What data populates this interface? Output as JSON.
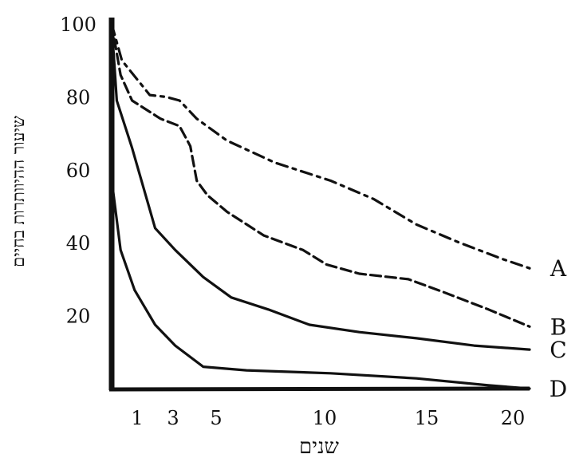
{
  "chart_data": {
    "type": "line",
    "title": "",
    "xlabel": "שנים",
    "ylabel": "שיעור ההיוותרות בחיים",
    "xlim": [
      0,
      20
    ],
    "ylim": [
      0,
      100
    ],
    "x_ticks": [
      1,
      3,
      5,
      10,
      15,
      20
    ],
    "y_ticks": [
      20,
      40,
      60,
      80,
      100
    ],
    "grid": false,
    "legend": "series labels at right end of lines",
    "series": [
      {
        "name": "A",
        "style": "dash-dot",
        "points": [
          [
            0,
            100
          ],
          [
            0.4,
            90
          ],
          [
            1.7,
            80.5
          ],
          [
            2.6,
            80
          ],
          [
            3.3,
            79
          ],
          [
            4.1,
            74
          ],
          [
            5.5,
            68
          ],
          [
            7.7,
            62
          ],
          [
            10.3,
            57
          ],
          [
            12.4,
            52
          ],
          [
            14.5,
            45
          ],
          [
            16.6,
            40
          ],
          [
            18.7,
            35.5
          ],
          [
            20,
            33
          ]
        ]
      },
      {
        "name": "B",
        "style": "dashed",
        "points": [
          [
            0,
            100
          ],
          [
            0.35,
            86
          ],
          [
            0.8,
            79
          ],
          [
            2.3,
            74
          ],
          [
            3.3,
            72
          ],
          [
            3.8,
            66.5
          ],
          [
            4.1,
            57
          ],
          [
            4.6,
            53
          ],
          [
            5.5,
            48.5
          ],
          [
            7.2,
            42
          ],
          [
            9,
            38
          ],
          [
            10.1,
            34
          ],
          [
            11.7,
            31.5
          ],
          [
            14.1,
            30
          ],
          [
            15.8,
            26.5
          ],
          [
            18,
            21.7
          ],
          [
            20,
            17
          ]
        ]
      },
      {
        "name": "C",
        "style": "solid",
        "points": [
          [
            0,
            100
          ],
          [
            0.2,
            79
          ],
          [
            0.8,
            66
          ],
          [
            2,
            44
          ],
          [
            3.1,
            38
          ],
          [
            4.4,
            30.6
          ],
          [
            5.7,
            25
          ],
          [
            7.4,
            21.7
          ],
          [
            9.3,
            17.5
          ],
          [
            11.7,
            15.5
          ],
          [
            14.5,
            13.8
          ],
          [
            17.3,
            11.8
          ],
          [
            20,
            10.7
          ]
        ]
      },
      {
        "name": "D",
        "style": "solid",
        "points": [
          [
            0,
            100
          ],
          [
            0.06,
            54
          ],
          [
            0.35,
            38
          ],
          [
            0.9,
            27
          ],
          [
            2,
            17.5
          ],
          [
            3.1,
            11.8
          ],
          [
            4.4,
            6
          ],
          [
            6.4,
            5
          ],
          [
            10.3,
            4.2
          ],
          [
            14.5,
            2.8
          ],
          [
            18,
            0.9
          ],
          [
            20,
            0
          ]
        ]
      }
    ]
  }
}
